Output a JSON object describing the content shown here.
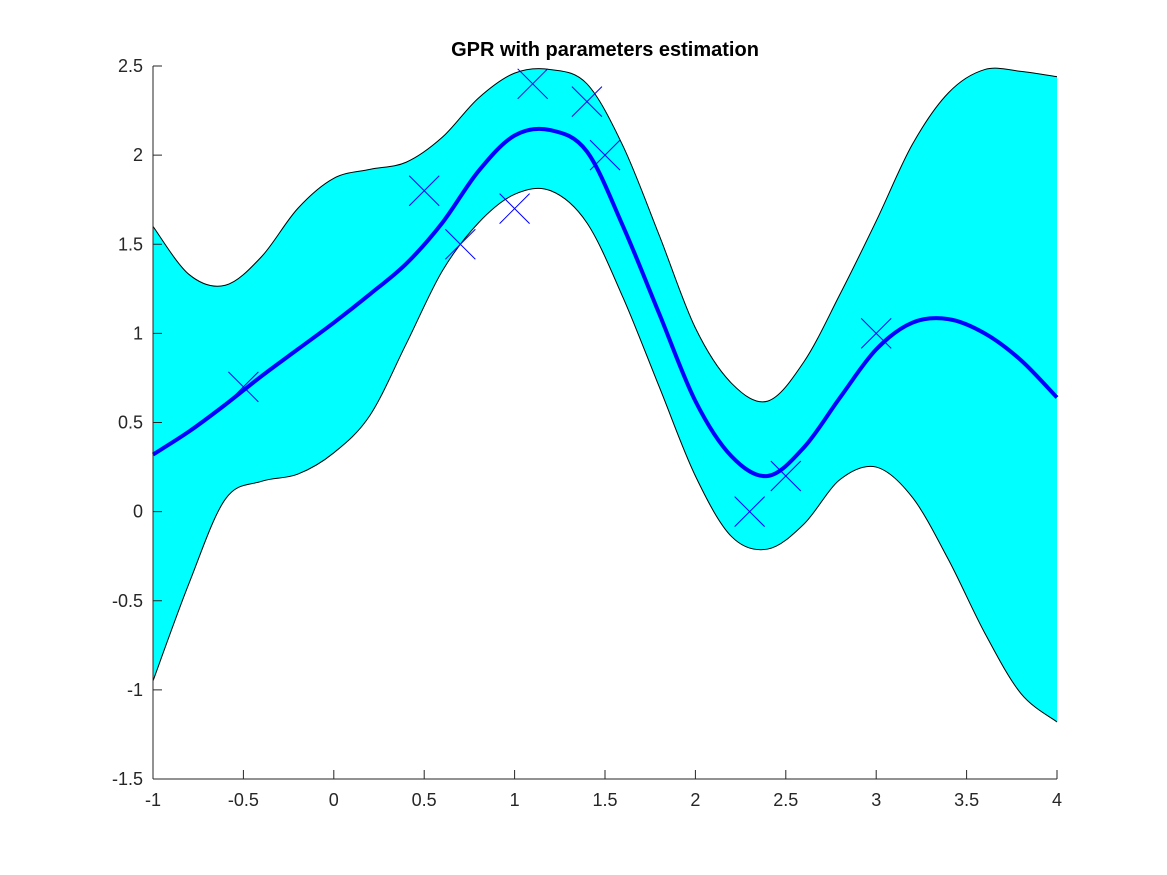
{
  "chart_data": {
    "type": "line",
    "title": "GPR with parameters estimation",
    "xlabel": "",
    "ylabel": "",
    "xlim": [
      -1,
      4
    ],
    "ylim": [
      -1.5,
      2.5
    ],
    "xticks": [
      -1,
      -0.5,
      0,
      0.5,
      1,
      1.5,
      2,
      2.5,
      3,
      3.5,
      4
    ],
    "xtick_labels": [
      "-1",
      "-0.5",
      "0",
      "0.5",
      "1",
      "1.5",
      "2",
      "2.5",
      "3",
      "3.5",
      "4"
    ],
    "yticks": [
      -1.5,
      -1,
      -0.5,
      0,
      0.5,
      1,
      1.5,
      2,
      2.5
    ],
    "ytick_labels": [
      "-1.5",
      "-1",
      "-0.5",
      "0",
      "0.5",
      "1",
      "1.5",
      "2",
      "2.5"
    ],
    "grid": false,
    "colors": {
      "band_fill": "#00ffff",
      "band_edge": "#000000",
      "mean_line": "#0000ff",
      "markers": "#0000ff",
      "axes": "#262626"
    },
    "confidence_band": {
      "x": [
        -1.0,
        -0.8,
        -0.6,
        -0.4,
        -0.2,
        0.0,
        0.2,
        0.4,
        0.6,
        0.8,
        1.0,
        1.2,
        1.4,
        1.6,
        1.8,
        2.0,
        2.2,
        2.4,
        2.6,
        2.8,
        3.0,
        3.2,
        3.4,
        3.6,
        3.8,
        4.0
      ],
      "upper": [
        1.6,
        1.33,
        1.27,
        1.43,
        1.7,
        1.87,
        1.92,
        1.96,
        2.1,
        2.32,
        2.46,
        2.48,
        2.4,
        2.05,
        1.55,
        1.03,
        0.72,
        0.62,
        0.84,
        1.22,
        1.63,
        2.06,
        2.35,
        2.48,
        2.47,
        2.44
      ],
      "lower": [
        -0.95,
        -0.4,
        0.07,
        0.17,
        0.21,
        0.33,
        0.54,
        0.94,
        1.35,
        1.62,
        1.78,
        1.8,
        1.62,
        1.2,
        0.7,
        0.2,
        -0.14,
        -0.21,
        -0.07,
        0.18,
        0.25,
        0.08,
        -0.27,
        -0.68,
        -1.02,
        -1.18
      ]
    },
    "series": [
      {
        "kind": "mean",
        "x": [
          -1.0,
          -0.8,
          -0.6,
          -0.4,
          -0.2,
          0.0,
          0.2,
          0.4,
          0.6,
          0.8,
          1.0,
          1.2,
          1.4,
          1.6,
          1.8,
          2.0,
          2.2,
          2.4,
          2.6,
          2.8,
          3.0,
          3.2,
          3.4,
          3.6,
          3.8,
          4.0
        ],
        "y": [
          0.32,
          0.45,
          0.6,
          0.76,
          0.91,
          1.06,
          1.22,
          1.39,
          1.62,
          1.91,
          2.11,
          2.14,
          2.02,
          1.6,
          1.11,
          0.62,
          0.31,
          0.2,
          0.36,
          0.64,
          0.91,
          1.06,
          1.08,
          1.0,
          0.85,
          0.64
        ]
      },
      {
        "kind": "observations",
        "x": [
          -0.5,
          0.5,
          0.7,
          1.0,
          1.1,
          1.4,
          1.5,
          2.3,
          2.5,
          3.0
        ],
        "y": [
          0.7,
          1.8,
          1.5,
          1.7,
          2.4,
          2.3,
          2.0,
          0.0,
          0.2,
          1.0
        ]
      }
    ]
  }
}
